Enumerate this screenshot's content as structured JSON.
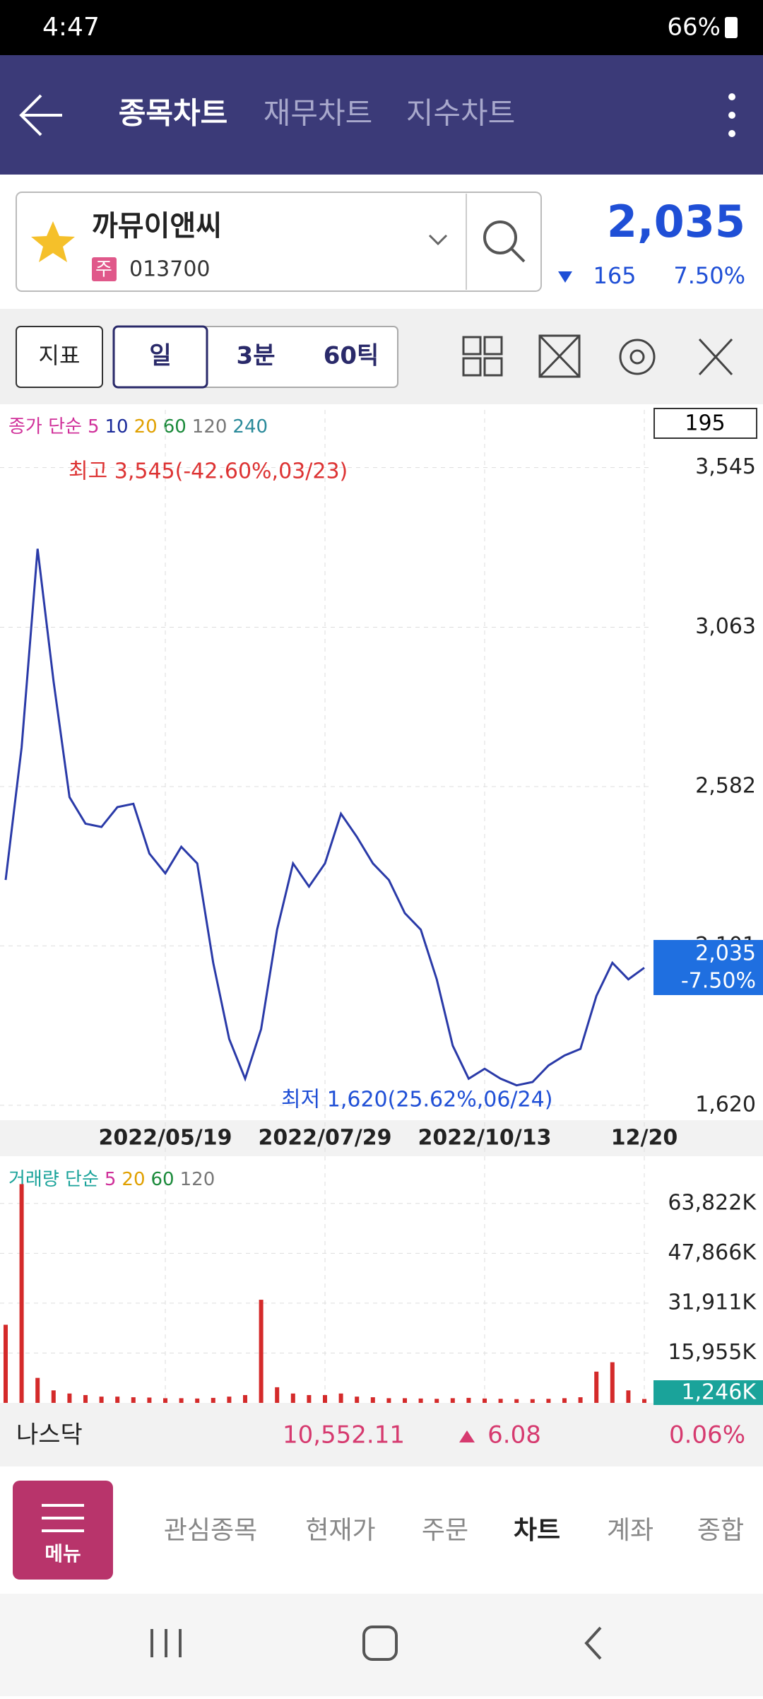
{
  "status_bar": {
    "time": "4:47",
    "battery": "66%"
  },
  "tabs": [
    "종목차트",
    "재무차트",
    "지수차트"
  ],
  "stock": {
    "name": "까뮤이앤씨",
    "market": "주",
    "code": "013700",
    "price": "2,035",
    "change": "165",
    "change_pct": "7.50%"
  },
  "toolbar": {
    "indicator": "지표",
    "periods": [
      "일",
      "3분",
      "60틱"
    ]
  },
  "price_chart": {
    "type": "line",
    "legend_label": "종가 단순",
    "ma_periods": [
      {
        "label": "5",
        "color": "#d0309a"
      },
      {
        "label": "10",
        "color": "#1a2a9a"
      },
      {
        "label": "20",
        "color": "#e0a000"
      },
      {
        "label": "60",
        "color": "#1a8a3a"
      },
      {
        "label": "120",
        "color": "#777777"
      },
      {
        "label": "240",
        "color": "#2a8a9a"
      }
    ],
    "count": "195",
    "high_label": "최고 3,545(-42.60%,03/23)",
    "low_label": "최저 1,620(25.62%,06/24)",
    "current_price": "2,035",
    "current_change": "-7.50%",
    "categories": [
      null,
      null,
      null,
      null,
      null,
      null,
      null,
      null,
      null,
      null,
      "2022/05/19",
      null,
      null,
      null,
      null,
      null,
      null,
      null,
      null,
      null,
      "2022/07/29",
      null,
      null,
      null,
      null,
      null,
      null,
      null,
      null,
      null,
      "2022/10/13",
      null,
      null,
      null,
      null,
      null,
      null,
      null,
      null,
      null,
      "12/20"
    ],
    "series": [
      {
        "color": "#2a3aa8",
        "values": [
          2300,
          2700,
          3300,
          2900,
          2550,
          2470,
          2460,
          2520,
          2530,
          2380,
          2320,
          2400,
          2350,
          2050,
          1820,
          1700,
          1850,
          2150,
          2350,
          2280,
          2350,
          2500,
          2430,
          2350,
          2300,
          2200,
          2150,
          2000,
          1800,
          1700,
          1730,
          1700,
          1680,
          1690,
          1740,
          1770,
          1790,
          1950,
          2050,
          2000,
          2035
        ]
      }
    ],
    "ylim": [
      1594,
      3732
    ],
    "yticks": [
      {
        "value": 3545,
        "label": "3,545"
      },
      {
        "value": 3063,
        "label": "3,063"
      },
      {
        "value": 2582,
        "label": "2,582"
      },
      {
        "value": 2101,
        "label": "2,101"
      },
      {
        "value": 1620,
        "label": "1,620"
      }
    ]
  },
  "volume_chart": {
    "type": "bar",
    "legend_label": "거래량 단순",
    "ma_periods": [
      {
        "label": "5",
        "color": "#d0309a"
      },
      {
        "label": "20",
        "color": "#e0a000"
      },
      {
        "label": "60",
        "color": "#1a8a3a"
      },
      {
        "label": "120",
        "color": "#777777"
      }
    ],
    "current": "1,246K",
    "color": "#d42a2a",
    "values": [
      25000,
      70000,
      8000,
      4000,
      3000,
      2500,
      2000,
      2000,
      1800,
      1700,
      1500,
      1500,
      1400,
      1600,
      2000,
      2500,
      33000,
      5000,
      3000,
      2500,
      2500,
      3000,
      2000,
      1800,
      1500,
      1500,
      1400,
      1300,
      1500,
      1600,
      1400,
      1300,
      1200,
      1200,
      1300,
      1500,
      1800,
      10000,
      13000,
      4000,
      1246
    ],
    "ylim": [
      0,
      75300
    ],
    "yticks": [
      {
        "value": 63822,
        "label": "63,822K"
      },
      {
        "value": 47866,
        "label": "47,866K"
      },
      {
        "value": 31911,
        "label": "31,911K"
      },
      {
        "value": 15955,
        "label": "15,955K"
      }
    ]
  },
  "index_bar": {
    "name": "나스닥",
    "value": "10,552.11",
    "change": "6.08",
    "change_pct": "0.06%"
  },
  "bottom_nav": {
    "menu": "메뉴",
    "items": [
      "관심종목",
      "현재가",
      "주문",
      "차트",
      "계좌",
      "종합"
    ]
  }
}
